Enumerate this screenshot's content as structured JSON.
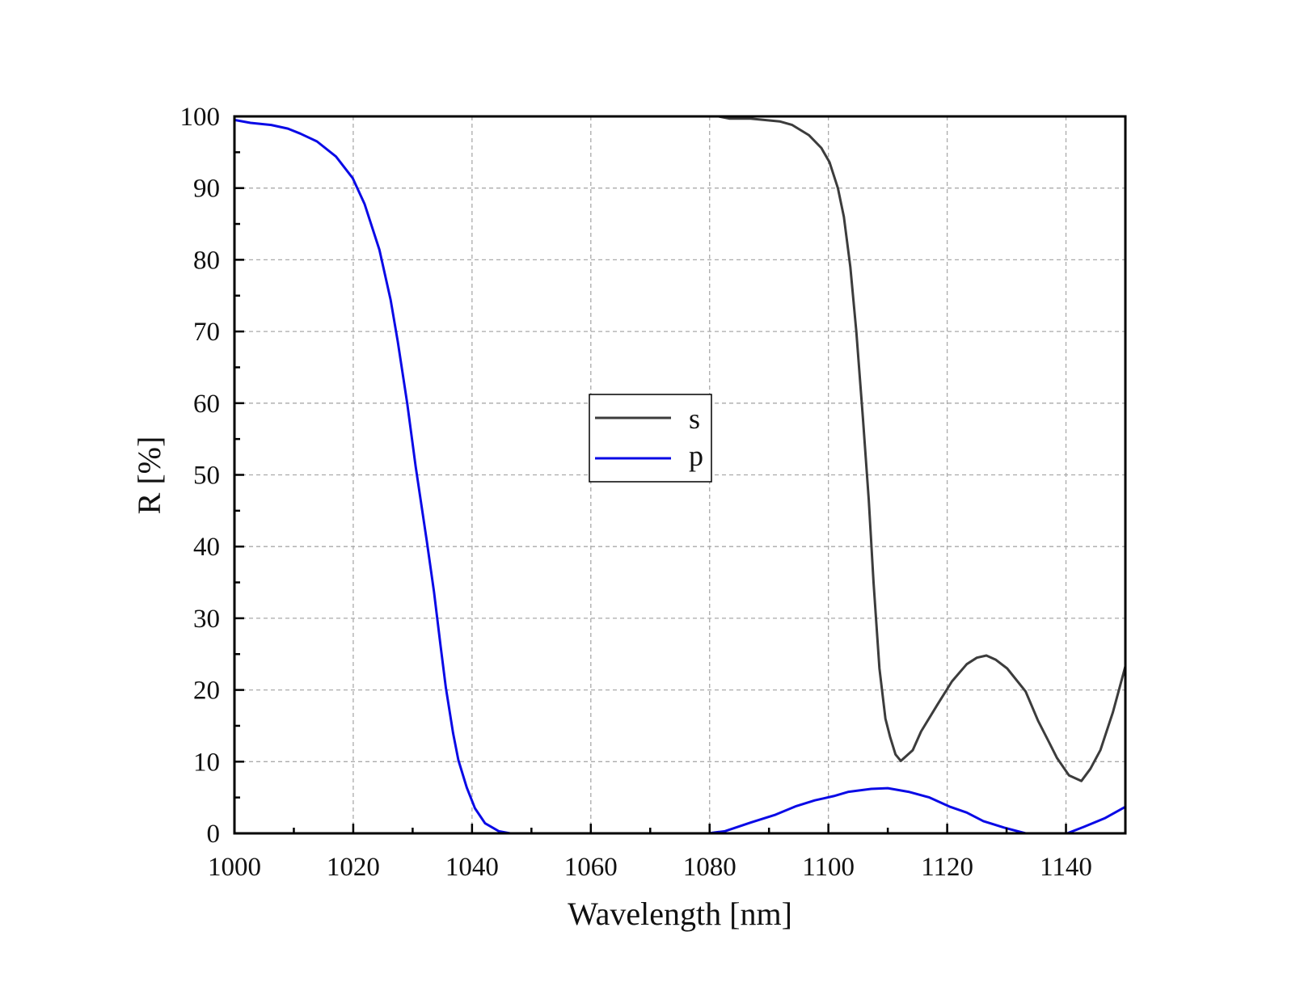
{
  "chart_data": {
    "type": "line",
    "title": "",
    "xlabel": "Wavelength [nm]",
    "ylabel": "R [%]",
    "xlim": [
      1000,
      1150
    ],
    "ylim": [
      0,
      100
    ],
    "xticks": [
      1000,
      1020,
      1040,
      1060,
      1080,
      1100,
      1120,
      1140
    ],
    "yticks": [
      0,
      10,
      20,
      30,
      40,
      50,
      60,
      70,
      80,
      90,
      100
    ],
    "grid": true,
    "legend_position": "center",
    "series": [
      {
        "name": "s",
        "color": "#3c3c3c",
        "x": [
          1081.5,
          1083.3,
          1086.9,
          1091.8,
          1093.9,
          1096.7,
          1098.8,
          1100.2,
          1101.6,
          1102.6,
          1103.7,
          1104.7,
          1105.8,
          1106.8,
          1107.6,
          1108.6,
          1109.6,
          1110.4,
          1111.3,
          1112.2,
          1114.2,
          1115.6,
          1118.4,
          1120.8,
          1123.3,
          1125,
          1126.6,
          1128.2,
          1130.1,
          1133.2,
          1135.3,
          1137.1,
          1138.5,
          1140.5,
          1142.6,
          1144.1,
          1145.8,
          1147.9,
          1150
        ],
        "y": [
          100,
          99.7,
          99.7,
          99.3,
          98.8,
          97.4,
          95.6,
          93.6,
          90,
          86,
          79,
          70,
          58,
          46.5,
          35,
          23,
          16,
          13.4,
          11,
          10.1,
          11.6,
          14.2,
          18,
          21.2,
          23.6,
          24.5,
          24.8,
          24.2,
          23,
          19.8,
          15.7,
          12.8,
          10.5,
          8.1,
          7.3,
          9,
          11.6,
          16.9,
          23.3
        ]
      },
      {
        "name": "p",
        "color": "#0a0ae6",
        "x": [
          1000,
          1002.7,
          1006.2,
          1009,
          1011.1,
          1013.9,
          1017.1,
          1019.9,
          1021.9,
          1024.4,
          1026.3,
          1027.5,
          1029.1,
          1030.5,
          1032.4,
          1033.6,
          1034.7,
          1035.6,
          1036.8,
          1037.7,
          1039.1,
          1040.5,
          1042.2,
          1044.5,
          1046.4,
          1079.8,
          1082.6,
          1086.9,
          1091.1,
          1094.6,
          1097.7,
          1100.9,
          1103.4,
          1107.2,
          1110,
          1113.5,
          1117,
          1120.5,
          1123.3,
          1126.1,
          1129.6,
          1133.2,
          1140.2,
          1143,
          1146.5,
          1150
        ],
        "y": [
          99.5,
          99.1,
          98.8,
          98.3,
          97.6,
          96.5,
          94.4,
          91.4,
          87.8,
          81.4,
          74.4,
          68.6,
          59.9,
          51.2,
          40.7,
          33.7,
          26.2,
          20.3,
          14,
          10.2,
          6.4,
          3.5,
          1.4,
          0.3,
          0,
          0,
          0.3,
          1.5,
          2.6,
          3.8,
          4.6,
          5.2,
          5.8,
          6.2,
          6.3,
          5.8,
          5,
          3.7,
          2.9,
          1.7,
          0.8,
          0,
          0,
          0.9,
          2.1,
          3.7
        ]
      }
    ]
  }
}
